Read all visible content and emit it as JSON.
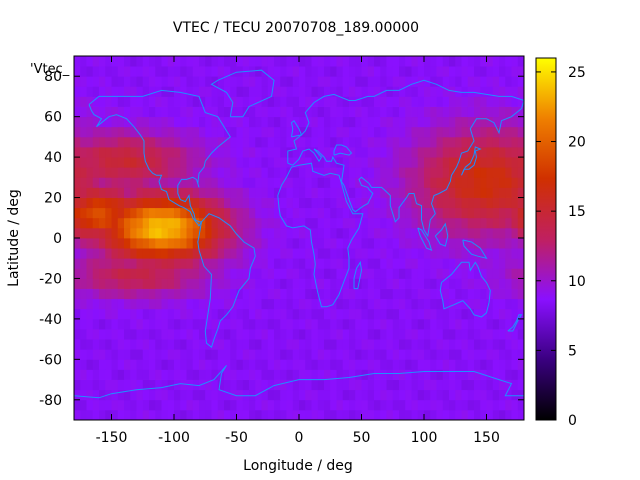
{
  "chart_data": {
    "type": "heatmap",
    "title": "VTEC / TECU 20070708_189.00000",
    "xlabel": "Longitude / deg",
    "ylabel": "Latitude / deg",
    "key_label": "'Vtec_",
    "xlim": [
      -180,
      180
    ],
    "ylim": [
      -90,
      90
    ],
    "x_ticks": [
      -150,
      -100,
      -50,
      0,
      50,
      100,
      150
    ],
    "y_ticks": [
      -80,
      -60,
      -40,
      -20,
      0,
      20,
      40,
      60,
      80
    ],
    "colorbar": {
      "range": [
        0,
        26
      ],
      "ticks": [
        0,
        5,
        10,
        15,
        20,
        25
      ],
      "colormap": [
        "#000000",
        "#3a0080",
        "#8a10ff",
        "#c02060",
        "#d03000",
        "#ef8000",
        "#ffff00"
      ]
    },
    "coastline_color": "#1e90ff",
    "cell_size_deg": [
      5,
      5
    ],
    "vtec_features": [
      {
        "description_lat": 5,
        "lon": -110,
        "peak": 24,
        "sigma_lon": 35,
        "sigma_lat": 12
      },
      {
        "lat": 12,
        "lon": -160,
        "peak": 19,
        "sigma_lon": 25,
        "sigma_lat": 10
      },
      {
        "lat": 28,
        "lon": 150,
        "peak": 17,
        "sigma_lon": 40,
        "sigma_lat": 18
      },
      {
        "lat": 38,
        "lon": -140,
        "peak": 15,
        "sigma_lon": 40,
        "sigma_lat": 10
      },
      {
        "lat": -18,
        "lon": -130,
        "peak": 14,
        "sigma_lon": 40,
        "sigma_lat": 8
      }
    ]
  }
}
